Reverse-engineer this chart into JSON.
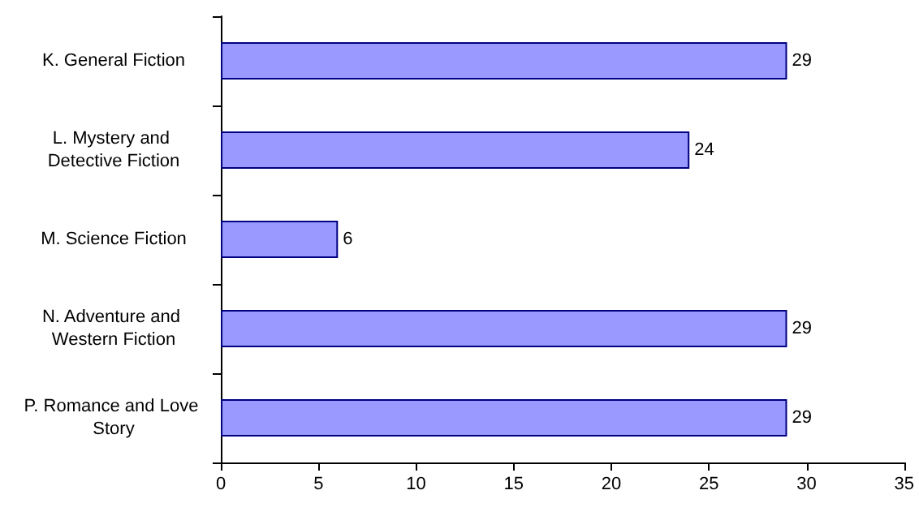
{
  "chart_data": {
    "type": "bar",
    "orientation": "horizontal",
    "categories": [
      "K. General Fiction",
      "L. Mystery and Detective Fiction",
      "M. Science Fiction",
      "N. Adventure and Western Fiction",
      "P. Romance and Love Story"
    ],
    "values": [
      29,
      24,
      6,
      29,
      29
    ],
    "color": "#9999ff",
    "xlim": [
      0,
      35
    ],
    "xticks": [
      0,
      5,
      10,
      15,
      20,
      25,
      30,
      35
    ],
    "grid": false,
    "data_labels": true
  }
}
